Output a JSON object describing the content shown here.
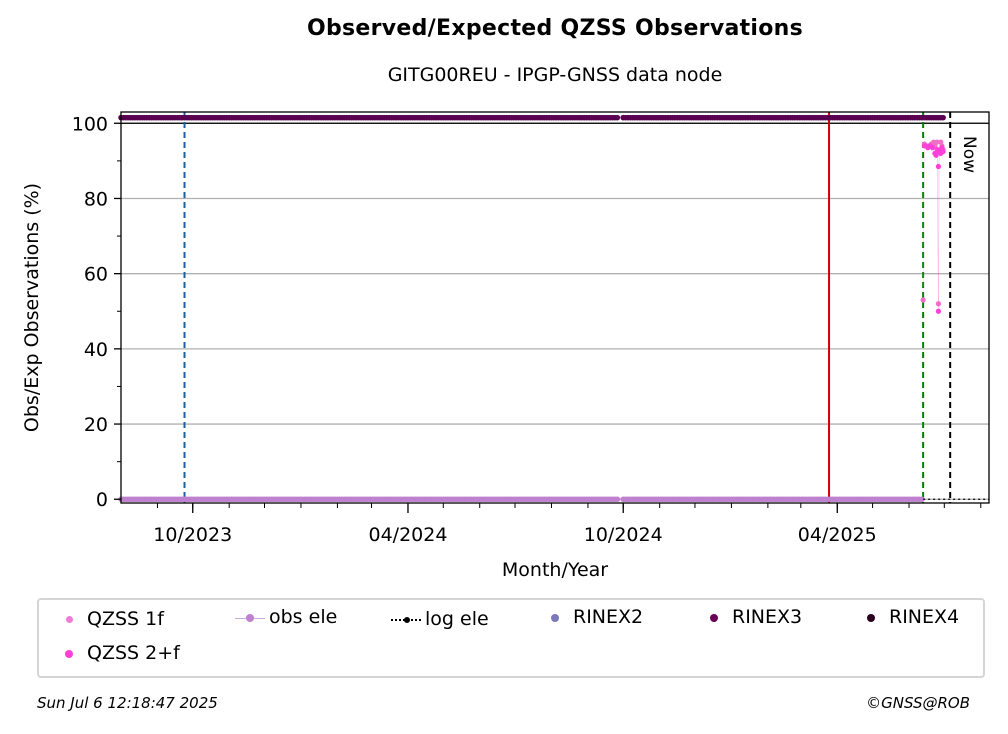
{
  "title": "Observed/Expected QZSS Observations",
  "subtitle": "GITG00REU - IPGP-GNSS data node",
  "chart_data": {
    "type": "scatter",
    "xlabel": "Month/Year",
    "ylabel": "Obs/Exp Observations (%)",
    "x_ticks": [
      "10/2023",
      "04/2024",
      "10/2024",
      "04/2025"
    ],
    "y_ticks": [
      "0",
      "20",
      "40",
      "60",
      "80",
      "100"
    ],
    "ylim": [
      -1,
      103
    ],
    "xlim": [
      "2023-08-01",
      "2025-08-08"
    ],
    "grid": "horizontal",
    "legend_placement": "below",
    "now_label": "Now",
    "vertical_lines": [
      {
        "date": "2023-09-24",
        "color": "#1f5fa0",
        "style": "dashed"
      },
      {
        "date": "2025-03-25",
        "color": "#d00000",
        "style": "solid"
      },
      {
        "date": "2025-06-13",
        "color": "#008000",
        "style": "dashed"
      },
      {
        "date": "2025-07-06",
        "color": "#000000",
        "style": "dashed"
      }
    ],
    "series": [
      {
        "name": "RINEX3",
        "color": "#5a0050",
        "segments": [
          [
            "2023-08-01",
            "2024-09-27"
          ],
          [
            "2024-10-01",
            "2025-07-01"
          ]
        ],
        "value": 101.5
      },
      {
        "name": "obs ele",
        "color": "#c080d0",
        "segments": [
          [
            "2023-08-01",
            "2024-09-27"
          ],
          [
            "2024-10-01",
            "2025-06-13"
          ]
        ],
        "value": 0
      },
      {
        "name": "QZSS 1f",
        "color": "#f070c8",
        "points": [
          [
            "2025-06-13",
            53
          ],
          [
            "2025-06-14",
            94.5
          ],
          [
            "2025-06-16",
            94
          ],
          [
            "2025-06-18",
            94
          ],
          [
            "2025-06-20",
            94.5
          ],
          [
            "2025-06-22",
            95
          ],
          [
            "2025-06-23",
            94
          ],
          [
            "2025-06-24",
            92
          ],
          [
            "2025-06-25",
            95
          ],
          [
            "2025-06-26",
            52
          ],
          [
            "2025-06-27",
            93
          ],
          [
            "2025-06-28",
            95
          ],
          [
            "2025-06-29",
            94
          ],
          [
            "2025-06-30",
            93
          ]
        ]
      },
      {
        "name": "QZSS 2+f",
        "color": "#ff40d8",
        "points": [
          [
            "2025-06-14",
            94
          ],
          [
            "2025-06-15",
            94
          ],
          [
            "2025-06-17",
            93.5
          ],
          [
            "2025-06-19",
            94
          ],
          [
            "2025-06-21",
            93.5
          ],
          [
            "2025-06-23",
            92
          ],
          [
            "2025-06-24",
            91.5
          ],
          [
            "2025-06-25",
            93
          ],
          [
            "2025-06-26",
            50
          ],
          [
            "2025-06-26",
            88.5
          ],
          [
            "2025-06-27",
            92.5
          ],
          [
            "2025-06-28",
            92
          ],
          [
            "2025-06-29",
            93.5
          ],
          [
            "2025-06-30",
            92.5
          ]
        ]
      }
    ]
  },
  "legend": {
    "qzss1f": "QZSS 1f",
    "obs_ele": "obs ele",
    "log_ele": "log ele",
    "rinex2": "RINEX2",
    "rinex3": "RINEX3",
    "rinex4": "RINEX4",
    "qzss2f": "QZSS 2+f",
    "colors": {
      "qzss1f": "#f07ad8",
      "obs_ele": "#c080d0",
      "log_ele": "#000000",
      "rinex2": "#7a78b8",
      "rinex3": "#6a0055",
      "rinex4": "#2a0020",
      "qzss2f": "#ff40d8"
    }
  },
  "footer": {
    "timestamp": "Sun Jul  6 12:18:47 2025",
    "copyright": "©GNSS@ROB"
  }
}
